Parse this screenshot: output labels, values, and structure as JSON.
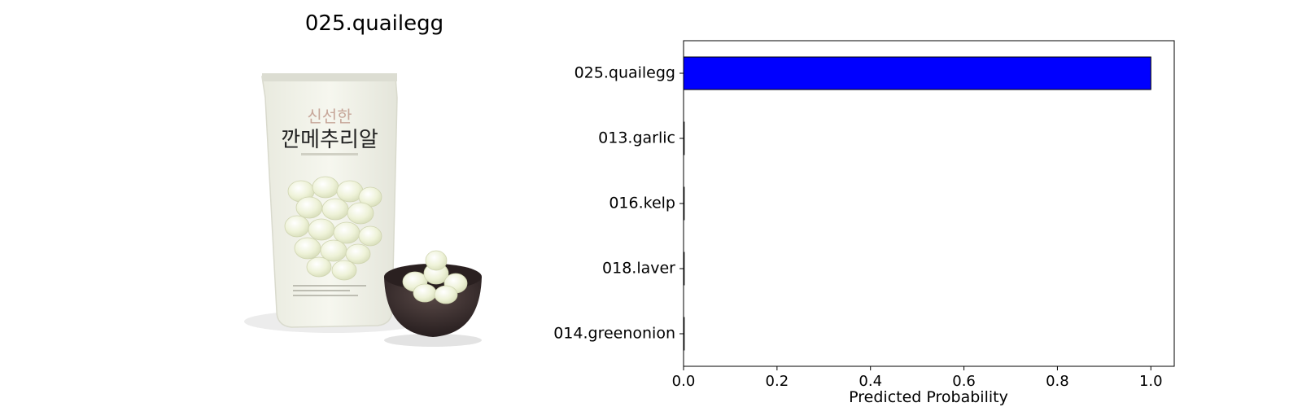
{
  "image_panel": {
    "title": "025.quailegg",
    "package_text_top": "신선한",
    "package_text_main": "깐메추리알"
  },
  "colors": {
    "bar": "#0000ff",
    "edge": "#000000"
  },
  "chart_data": {
    "type": "bar",
    "orientation": "horizontal",
    "categories": [
      "025.quailegg",
      "013.garlic",
      "016.kelp",
      "018.laver",
      "014.greenonion"
    ],
    "values": [
      1.0,
      0.0,
      0.0,
      0.0,
      0.0
    ],
    "xlabel": "Predicted Probability",
    "ylabel": "",
    "xlim": [
      0,
      1.05
    ],
    "xticks": [
      0.0,
      0.2,
      0.4,
      0.6,
      0.8,
      1.0
    ],
    "xtick_labels": [
      "0.0",
      "0.2",
      "0.4",
      "0.6",
      "0.8",
      "1.0"
    ],
    "grid": false
  }
}
